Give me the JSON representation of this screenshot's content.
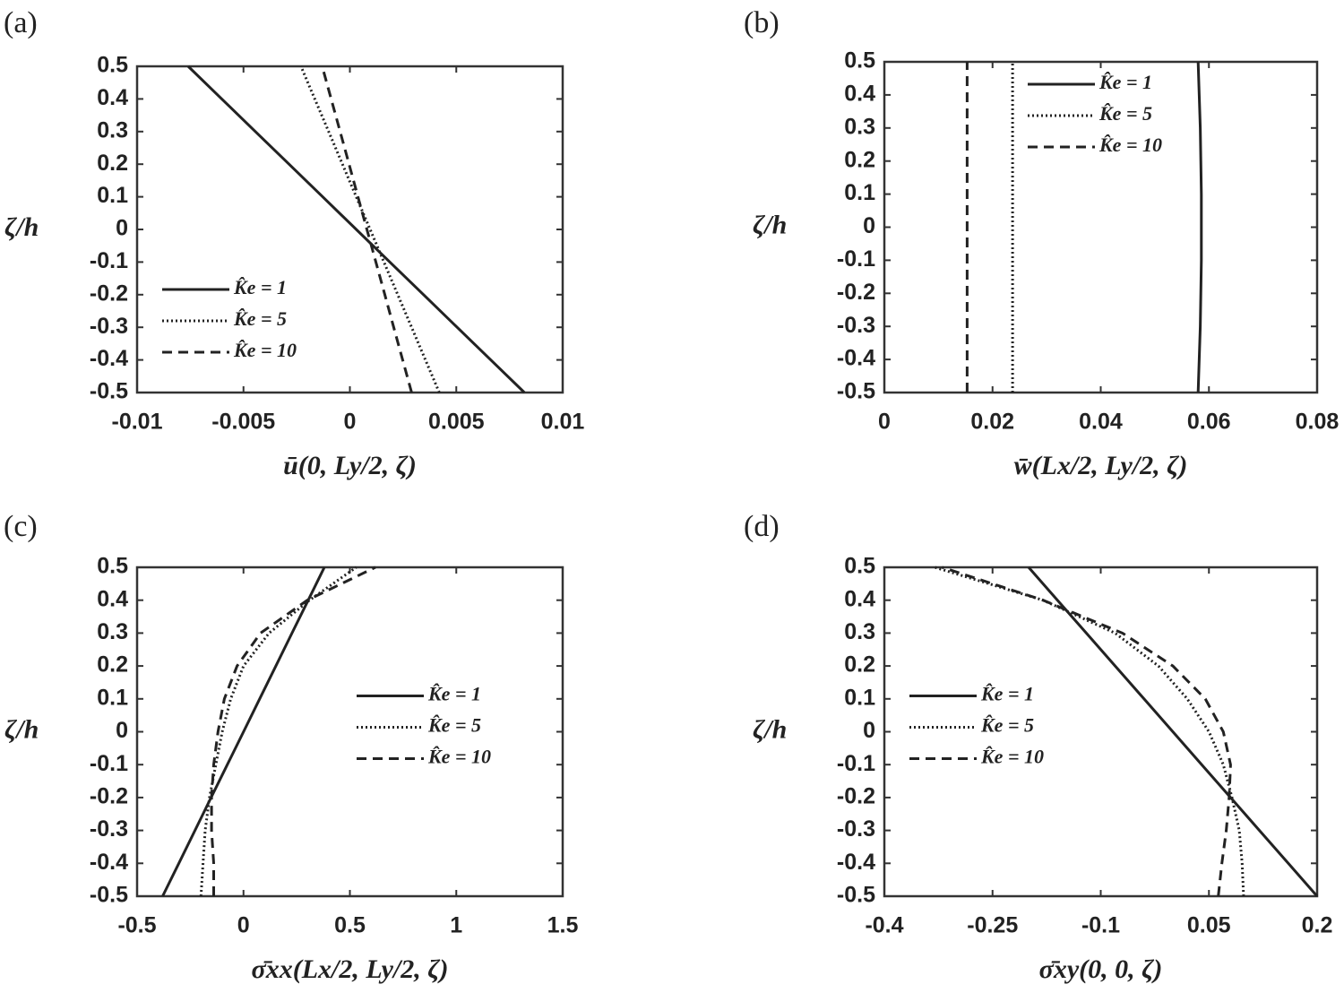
{
  "chart_data": [
    {
      "type": "line",
      "panel_label": "(a)",
      "x_label": "ū(0, Ly/2, ζ)",
      "y_label": "ζ/h",
      "y": [
        -0.5,
        -0.4,
        -0.3,
        -0.2,
        -0.1,
        0,
        0.1,
        0.2,
        0.3,
        0.4,
        0.5
      ],
      "series": [
        {
          "name": "K̂e = 1",
          "color": "#222222",
          "style": "solid",
          "values": [
            0.0082,
            0.00662,
            0.00504,
            0.00346,
            0.00188,
            0.0003,
            -0.00128,
            -0.00286,
            -0.00444,
            -0.00602,
            -0.0076
          ]
        },
        {
          "name": "K̂e = 5",
          "color": "#222222",
          "style": "dotted",
          "values": [
            0.0042,
            0.00355,
            0.0029,
            0.00225,
            0.0016,
            0.00095,
            0.0003,
            -0.00035,
            -0.001,
            -0.00165,
            -0.0023
          ]
        },
        {
          "name": "K̂e = 10",
          "color": "#222222",
          "style": "dashed",
          "values": [
            0.0029,
            0.00248,
            0.00206,
            0.00164,
            0.00122,
            0.0008,
            0.00038,
            -4e-05,
            -0.00046,
            -0.00088,
            -0.0013
          ]
        }
      ],
      "xlim": [
        -0.01,
        0.01
      ],
      "xticks": [
        -0.01,
        -0.005,
        0,
        0.005,
        0.01
      ],
      "ylim": [
        -0.5,
        0.5
      ],
      "yticks": [
        -0.5,
        -0.4,
        -0.3,
        -0.2,
        -0.1,
        0,
        0.1,
        0.2,
        0.3,
        0.4,
        0.5
      ],
      "legend": "lower left"
    },
    {
      "type": "line",
      "panel_label": "(b)",
      "x_label": "w̄(Lx/2, Ly/2, ζ)",
      "y_label": "ζ/h",
      "y": [
        -0.5,
        -0.4,
        -0.3,
        -0.2,
        -0.1,
        0,
        0.1,
        0.2,
        0.3,
        0.4,
        0.5
      ],
      "series": [
        {
          "name": "K̂e = 1",
          "color": "#222222",
          "style": "solid",
          "values": [
            0.058,
            0.0582,
            0.0584,
            0.0585,
            0.0586,
            0.0586,
            0.0586,
            0.0585,
            0.0584,
            0.0582,
            0.058
          ]
        },
        {
          "name": "K̂e = 5",
          "color": "#222222",
          "style": "dotted",
          "values": [
            0.0237,
            0.0237,
            0.0237,
            0.0237,
            0.0237,
            0.0237,
            0.0237,
            0.0237,
            0.0237,
            0.0237,
            0.0237
          ]
        },
        {
          "name": "K̂e = 10",
          "color": "#222222",
          "style": "dashed",
          "values": [
            0.0153,
            0.0153,
            0.0153,
            0.0153,
            0.0153,
            0.0153,
            0.0153,
            0.0153,
            0.0153,
            0.0153,
            0.0153
          ]
        }
      ],
      "xlim": [
        0,
        0.08
      ],
      "xticks": [
        0,
        0.02,
        0.04,
        0.06,
        0.08
      ],
      "ylim": [
        -0.5,
        0.5
      ],
      "yticks": [
        -0.5,
        -0.4,
        -0.3,
        -0.2,
        -0.1,
        0,
        0.1,
        0.2,
        0.3,
        0.4,
        0.5
      ],
      "legend": "upper center"
    },
    {
      "type": "line",
      "panel_label": "(c)",
      "x_label": "σ̄xx(Lx/2, Ly/2, ζ)",
      "y_label": "ζ/h",
      "y": [
        -0.5,
        -0.4,
        -0.3,
        -0.2,
        -0.1,
        0,
        0.1,
        0.2,
        0.3,
        0.4,
        0.5
      ],
      "series": [
        {
          "name": "K̂e = 1",
          "color": "#222222",
          "style": "solid",
          "values": [
            -0.38,
            -0.304,
            -0.228,
            -0.152,
            -0.076,
            0,
            0.076,
            0.152,
            0.228,
            0.304,
            0.38
          ]
        },
        {
          "name": "K̂e = 5",
          "color": "#222222",
          "style": "dotted",
          "values": [
            -0.2,
            -0.19,
            -0.18,
            -0.16,
            -0.13,
            -0.1,
            -0.06,
            0.0,
            0.12,
            0.31,
            0.53
          ]
        },
        {
          "name": "K̂e = 10",
          "color": "#222222",
          "style": "dashed",
          "values": [
            -0.14,
            -0.14,
            -0.15,
            -0.15,
            -0.14,
            -0.12,
            -0.09,
            -0.03,
            0.08,
            0.3,
            0.62
          ]
        }
      ],
      "xlim": [
        -0.5,
        1.5
      ],
      "xticks": [
        -0.5,
        0,
        0.5,
        1,
        1.5
      ],
      "ylim": [
        -0.5,
        0.5
      ],
      "yticks": [
        -0.5,
        -0.4,
        -0.3,
        -0.2,
        -0.1,
        0,
        0.1,
        0.2,
        0.3,
        0.4,
        0.5
      ],
      "legend": "center right"
    },
    {
      "type": "line",
      "panel_label": "(d)",
      "x_label": "σ̄xy(0, 0, ζ)",
      "y_label": "ζ/h",
      "y": [
        -0.5,
        -0.4,
        -0.3,
        -0.2,
        -0.1,
        0,
        0.1,
        0.2,
        0.3,
        0.4,
        0.5
      ],
      "series": [
        {
          "name": "K̂e = 1",
          "color": "#222222",
          "style": "solid",
          "values": [
            0.2,
            0.16,
            0.12,
            0.08,
            0.04,
            0,
            -0.04,
            -0.08,
            -0.12,
            -0.16,
            -0.2
          ]
        },
        {
          "name": "K̂e = 5",
          "color": "#222222",
          "style": "dotted",
          "values": [
            0.098,
            0.096,
            0.092,
            0.082,
            0.07,
            0.05,
            0.02,
            -0.02,
            -0.08,
            -0.18,
            -0.33
          ]
        },
        {
          "name": "K̂e = 10",
          "color": "#222222",
          "style": "dashed",
          "values": [
            0.063,
            0.068,
            0.074,
            0.078,
            0.08,
            0.07,
            0.045,
            0.0,
            -0.07,
            -0.18,
            -0.32
          ]
        }
      ],
      "xlim": [
        -0.4,
        0.2
      ],
      "xticks": [
        -0.4,
        -0.25,
        -0.1,
        0.05,
        0.2
      ],
      "ylim": [
        -0.5,
        0.5
      ],
      "yticks": [
        -0.5,
        -0.4,
        -0.3,
        -0.2,
        -0.1,
        0,
        0.1,
        0.2,
        0.3,
        0.4,
        0.5
      ],
      "legend": "center left"
    }
  ]
}
